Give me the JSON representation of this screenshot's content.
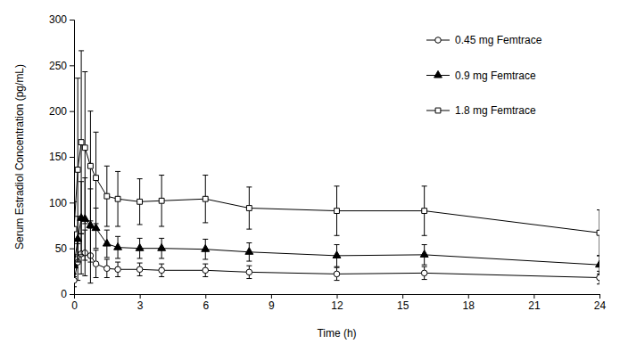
{
  "chart_data": {
    "type": "line",
    "x_label": "Time (h)",
    "y_label": "Serum Estradiol Concentration (pg/mL)",
    "x": [
      0,
      0.17,
      0.33,
      0.5,
      0.75,
      1,
      1.5,
      2,
      3,
      4,
      6,
      8,
      12,
      16,
      24
    ],
    "xlim": [
      0,
      24
    ],
    "xticks": [
      0,
      3,
      6,
      9,
      12,
      15,
      18,
      21,
      24
    ],
    "ylim": [
      0,
      300
    ],
    "yticks": [
      0,
      50,
      100,
      150,
      200,
      250,
      300
    ],
    "grid": false,
    "legend": "upper right",
    "series": [
      {
        "name": "0.45 mg Femtrace",
        "color": "#000000",
        "marker": "circle-open",
        "line_style": "solid",
        "values": [
          15,
          35,
          44,
          45,
          42,
          33,
          28,
          27,
          27,
          26,
          26,
          24,
          22,
          23,
          18
        ],
        "errors": [
          7,
          20,
          22,
          25,
          30,
          15,
          10,
          8,
          7,
          7,
          7,
          7,
          7,
          7,
          7
        ]
      },
      {
        "name": "0.9 mg Femtrace",
        "color": "#000000",
        "marker": "triangle",
        "line_style": "solid",
        "values": [
          31,
          60,
          83,
          82,
          75,
          72,
          55,
          51,
          50,
          50,
          49,
          46,
          42,
          43,
          32
        ],
        "errors": [
          12,
          25,
          40,
          45,
          40,
          22,
          15,
          12,
          11,
          11,
          11,
          10,
          12,
          11,
          10
        ]
      },
      {
        "name": "1.8 mg Femtrace",
        "color": "#000000",
        "marker": "square-open",
        "line_style": "solid",
        "values": [
          71,
          136,
          166,
          160,
          140,
          127,
          107,
          104,
          101,
          102,
          104,
          94,
          91,
          91,
          67
        ],
        "errors": [
          30,
          100,
          100,
          83,
          60,
          50,
          33,
          30,
          25,
          28,
          26,
          23,
          27,
          27,
          25
        ]
      }
    ]
  }
}
